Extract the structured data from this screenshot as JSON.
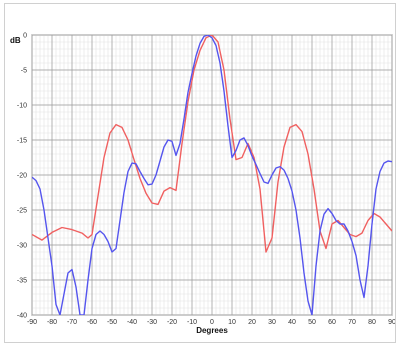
{
  "chart_data": {
    "type": "line",
    "xlabel": "Degrees",
    "ylabel": "dB",
    "xlim": [
      -90,
      90
    ],
    "ylim": [
      -40,
      0
    ],
    "x_ticks": [
      -90,
      -80,
      -70,
      -60,
      -50,
      -40,
      -30,
      -20,
      -10,
      0,
      10,
      20,
      30,
      40,
      50,
      60,
      70,
      80,
      90
    ],
    "y_ticks": [
      0,
      -5,
      -10,
      -15,
      -20,
      -25,
      -30,
      -35,
      -40
    ],
    "grid": true,
    "legend": "none",
    "series": [
      {
        "color": "#f06060",
        "x": [
          -90,
          -85,
          -80,
          -75,
          -70,
          -65,
          -62,
          -60,
          -57,
          -54,
          -51,
          -48,
          -45,
          -42,
          -39,
          -36,
          -33,
          -30,
          -27,
          -24,
          -21,
          -18,
          -15,
          -12,
          -9,
          -6,
          -3,
          0,
          3,
          6,
          9,
          12,
          15,
          18,
          21,
          24,
          27,
          30,
          33,
          36,
          39,
          42,
          45,
          48,
          51,
          54,
          57,
          60,
          63,
          66,
          69,
          72,
          75,
          78,
          81,
          84,
          87,
          90
        ],
        "y": [
          -28.5,
          -29.3,
          -28.2,
          -27.5,
          -27.8,
          -28.3,
          -29.0,
          -28.5,
          -23.0,
          -17.5,
          -14.0,
          -12.8,
          -13.2,
          -15.0,
          -17.8,
          -20.5,
          -22.6,
          -24.0,
          -24.2,
          -22.3,
          -21.8,
          -22.2,
          -15.5,
          -9.5,
          -5.0,
          -2.2,
          -0.4,
          0.0,
          -1.0,
          -5.0,
          -12.0,
          -17.8,
          -17.5,
          -15.5,
          -17.5,
          -22.0,
          -31.0,
          -29.0,
          -21.0,
          -16.0,
          -13.2,
          -12.8,
          -13.8,
          -17.0,
          -22.0,
          -28.0,
          -30.5,
          -27.0,
          -26.5,
          -27.5,
          -28.5,
          -28.8,
          -28.3,
          -26.5,
          -25.5,
          -26.0,
          -27.0,
          -28.0
        ]
      },
      {
        "color": "#5555ee",
        "x": [
          -90,
          -88,
          -86,
          -84,
          -82,
          -80,
          -78,
          -76,
          -74,
          -72,
          -70,
          -68,
          -66,
          -64,
          -62,
          -60,
          -58,
          -56,
          -54,
          -52,
          -50,
          -48,
          -46,
          -44,
          -42,
          -40,
          -38,
          -36,
          -34,
          -32,
          -30,
          -28,
          -26,
          -24,
          -22,
          -20,
          -18,
          -16,
          -14,
          -12,
          -10,
          -8,
          -6,
          -4,
          -2,
          0,
          2,
          4,
          6,
          8,
          10,
          12,
          14,
          16,
          18,
          20,
          22,
          24,
          26,
          28,
          30,
          32,
          34,
          36,
          38,
          40,
          42,
          44,
          46,
          48,
          50,
          52,
          54,
          56,
          58,
          60,
          62,
          64,
          66,
          68,
          70,
          72,
          74,
          76,
          78,
          80,
          82,
          84,
          86,
          88,
          90
        ],
        "y": [
          -20.3,
          -20.8,
          -22.0,
          -25.0,
          -29.0,
          -33.0,
          -38.5,
          -40.0,
          -37.0,
          -34.0,
          -33.5,
          -36.0,
          -40.0,
          -40.0,
          -35.0,
          -30.5,
          -28.5,
          -28.0,
          -28.5,
          -29.5,
          -31.0,
          -30.5,
          -26.5,
          -22.5,
          -19.5,
          -18.3,
          -18.4,
          -19.5,
          -20.5,
          -21.4,
          -21.3,
          -20.0,
          -18.0,
          -16.0,
          -15.0,
          -15.2,
          -17.2,
          -15.5,
          -12.0,
          -8.2,
          -5.5,
          -3.0,
          -1.2,
          -0.2,
          0.0,
          -0.4,
          -1.5,
          -4.0,
          -8.0,
          -13.0,
          -17.5,
          -16.5,
          -15.0,
          -14.7,
          -15.8,
          -17.3,
          -18.5,
          -19.8,
          -21.0,
          -21.2,
          -20.0,
          -19.0,
          -18.8,
          -19.3,
          -20.5,
          -22.3,
          -25.0,
          -29.0,
          -34.0,
          -38.0,
          -40.0,
          -33.0,
          -28.0,
          -25.6,
          -24.8,
          -25.5,
          -26.5,
          -27.0,
          -27.0,
          -28.0,
          -29.5,
          -31.5,
          -35.0,
          -37.5,
          -33.0,
          -27.0,
          -22.0,
          -19.5,
          -18.3,
          -18.0,
          -18.1
        ]
      }
    ]
  }
}
